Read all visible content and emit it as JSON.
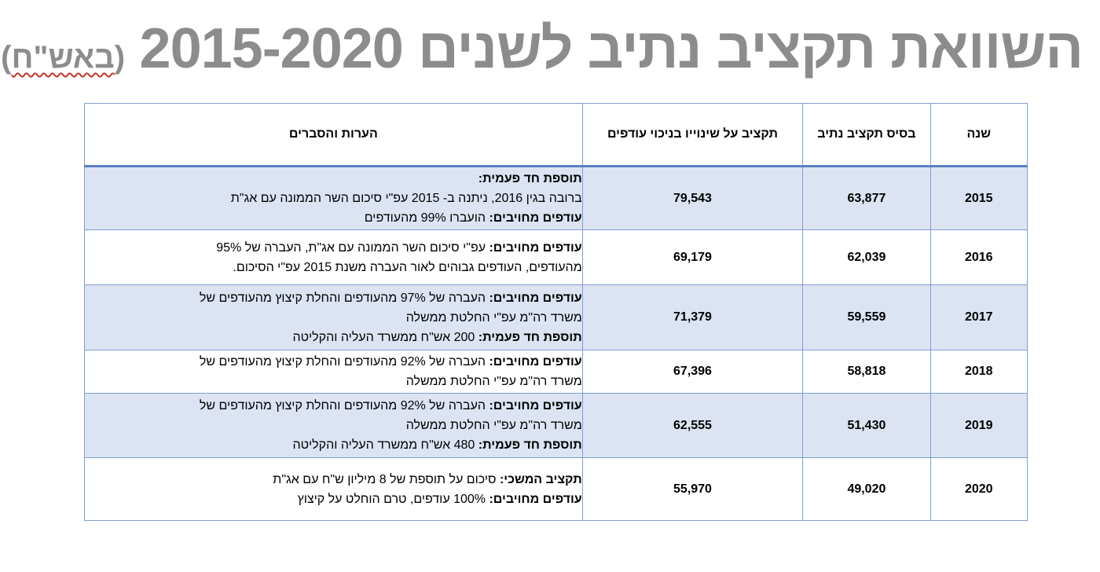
{
  "title": {
    "main": "השוואת תקציב נתיב לשנים 2015-2020",
    "unit_open": "(",
    "unit": "באש\"ח",
    "unit_close": ")"
  },
  "table": {
    "headers": {
      "year": "שנה",
      "base": "בסיס תקציב נתיב",
      "with_changes": "תקציב על שינוייו בניכוי עודפים",
      "notes": "הערות והסברים"
    },
    "rows": [
      {
        "year": "2015",
        "base": "63,877",
        "with_changes": "79,543",
        "notes": [
          {
            "label": "תוספת חד פעמית:",
            "text": ""
          },
          {
            "label": "",
            "text": "ברובה בגין 2016, ניתנה ב- 2015 עפ\"י סיכום השר הממונה עם אג\"ת"
          },
          {
            "label": "עודפים מחויבים:",
            "text": " הועברו 99% מהעודפים"
          }
        ]
      },
      {
        "year": "2016",
        "base": "62,039",
        "with_changes": "69,179",
        "notes": [
          {
            "label": "עודפים מחויבים:",
            "text": " עפ\"י סיכום השר הממונה עם אג\"ת, העברה של 95%"
          },
          {
            "label": "",
            "text": "מהעודפים, העודפים גבוהים לאור העברה משנת 2015 עפ\"י הסיכום."
          }
        ]
      },
      {
        "year": "2017",
        "base": "59,559",
        "with_changes": "71,379",
        "notes": [
          {
            "label": "עודפים מחויבים:",
            "text": " העברה של 97% מהעודפים והחלת קיצוץ מהעודפים של"
          },
          {
            "label": "",
            "text": "משרד רה\"מ עפ\"י החלטת ממשלה"
          },
          {
            "label": "תוספת חד פעמית:",
            "text": " 200 אש\"ח ממשרד העליה והקליטה"
          }
        ]
      },
      {
        "year": "2018",
        "base": "58,818",
        "with_changes": "67,396",
        "notes": [
          {
            "label": "עודפים מחויבים:",
            "text": " העברה של 92% מהעודפים והחלת קיצוץ מהעודפים של"
          },
          {
            "label": "",
            "text": "משרד רה\"מ עפ\"י החלטת ממשלה"
          }
        ]
      },
      {
        "year": "2019",
        "base": "51,430",
        "with_changes": "62,555",
        "notes": [
          {
            "label": "עודפים מחויבים:",
            "text": " העברה של 92% מהעודפים והחלת קיצוץ מהעודפים של"
          },
          {
            "label": "",
            "text": "משרד רה\"מ עפ\"י החלטת ממשלה"
          },
          {
            "label": "תוספת חד פעמית:",
            "text": " 480 אש\"ח ממשרד העליה והקליטה"
          }
        ]
      },
      {
        "year": "2020",
        "base": "49,020",
        "with_changes": "55,970",
        "notes": [
          {
            "label": "תקציב המשכי:",
            "text": " סיכום על תוספת של 8 מיליון ש\"ח עם אג\"ת"
          },
          {
            "label": "עודפים מחויבים:",
            "text": " 100% עודפים, טרם הוחלט על קיצוץ"
          }
        ]
      }
    ]
  }
}
